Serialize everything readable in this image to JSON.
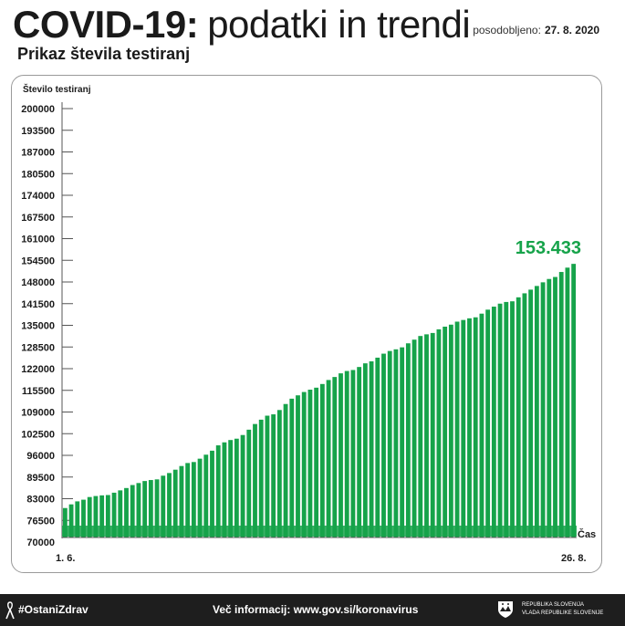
{
  "header": {
    "title_bold": "COVID-19:",
    "title_light": "podatki in trendi",
    "updated_label": "posodobljeno:",
    "updated_date": "27. 8. 2020",
    "subtitle": "Prikaz števila testiranj"
  },
  "chart_data": {
    "type": "bar",
    "title": "Prikaz števila testiranj",
    "ylabel": "Število testiranj",
    "xlabel": "Čas",
    "ylim": [
      70000,
      200000
    ],
    "y_ticks": [
      200000,
      193500,
      187000,
      180500,
      174000,
      167500,
      161000,
      154500,
      148000,
      141500,
      135000,
      128500,
      122000,
      115500,
      109000,
      102500,
      96000,
      89500,
      83000,
      76500,
      70000
    ],
    "x_first_label": "1. 6.",
    "x_last_label": "26. 8.",
    "highlight_label": "153.433",
    "bar_color": "#16a34a",
    "grid": false,
    "values": [
      80200,
      81300,
      82200,
      82700,
      83500,
      83800,
      84000,
      84100,
      84800,
      85500,
      86200,
      87100,
      87700,
      88300,
      88600,
      88800,
      89900,
      90700,
      91700,
      92800,
      93700,
      94000,
      95000,
      96200,
      97400,
      99000,
      99900,
      100600,
      101000,
      102100,
      103700,
      105400,
      106700,
      107900,
      108300,
      109600,
      111400,
      113000,
      114000,
      115000,
      115700,
      116300,
      117400,
      118600,
      119500,
      120600,
      121300,
      121600,
      122500,
      123600,
      124200,
      125300,
      126500,
      127300,
      127800,
      128400,
      129600,
      130700,
      131800,
      132300,
      132700,
      133800,
      134600,
      135200,
      136100,
      136600,
      137100,
      137400,
      138500,
      139700,
      140600,
      141500,
      142000,
      142200,
      143400,
      144600,
      145700,
      146800,
      147900,
      148900,
      149500,
      151000,
      152300,
      153433
    ]
  },
  "footer": {
    "hashtag": "#OstaniZdrav",
    "info": "Več informacij: www.gov.si/koronavirus",
    "gov_line1": "Republika Slovenija",
    "gov_line2": "Vlada Republike Slovenije"
  }
}
